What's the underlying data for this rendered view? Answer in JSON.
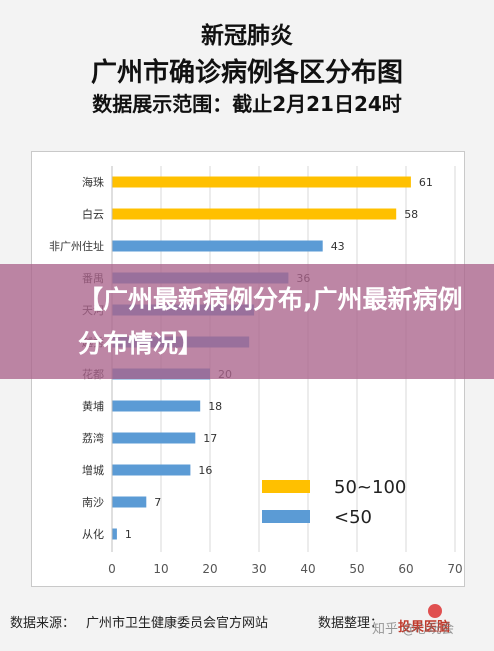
{
  "header": {
    "title_line1": "新冠肺炎",
    "title_line2": "广州市确诊病例各区分布图",
    "title_line3": "数据展示范围：截止2月21日24时"
  },
  "overlay": {
    "text": "【广州最新病例分布,广州最新病例分布情况】"
  },
  "footer": {
    "source_label": "数据来源：",
    "source_value": "广州市卫生健康委员会官方网站",
    "organizer_label": "数据整理：",
    "logo_text": "投果医脑",
    "watermark": "知乎 @心玩会"
  },
  "chart_data": {
    "type": "bar",
    "orientation": "horizontal",
    "categories": [
      "海珠",
      "白云",
      "非广州住址",
      "番禺",
      "天河",
      "越秀",
      "花都",
      "黄埔",
      "荔湾",
      "增城",
      "南沙",
      "从化"
    ],
    "values": [
      61,
      58,
      43,
      36,
      29,
      28,
      20,
      18,
      17,
      16,
      7,
      1
    ],
    "value_labels": [
      "61",
      "58",
      "43",
      "36",
      "",
      "",
      "20",
      "18",
      "17",
      "16",
      "7",
      "1"
    ],
    "groups": [
      "50~100",
      "50~100",
      "<50",
      "<50",
      "<50",
      "<50",
      "<50",
      "<50",
      "<50",
      "<50",
      "<50",
      "<50"
    ],
    "xlim": [
      0,
      70
    ],
    "xticks": [
      0,
      10,
      20,
      30,
      40,
      50,
      60,
      70
    ],
    "grid": true,
    "legend": [
      {
        "label": "50~100",
        "color": "#FFC000"
      },
      {
        "label": "<50",
        "color": "#5B9BD5"
      }
    ],
    "legend_position": "bottom-right",
    "colors": {
      "50~100": "#FFC000",
      "<50": "#5B9BD5"
    }
  }
}
